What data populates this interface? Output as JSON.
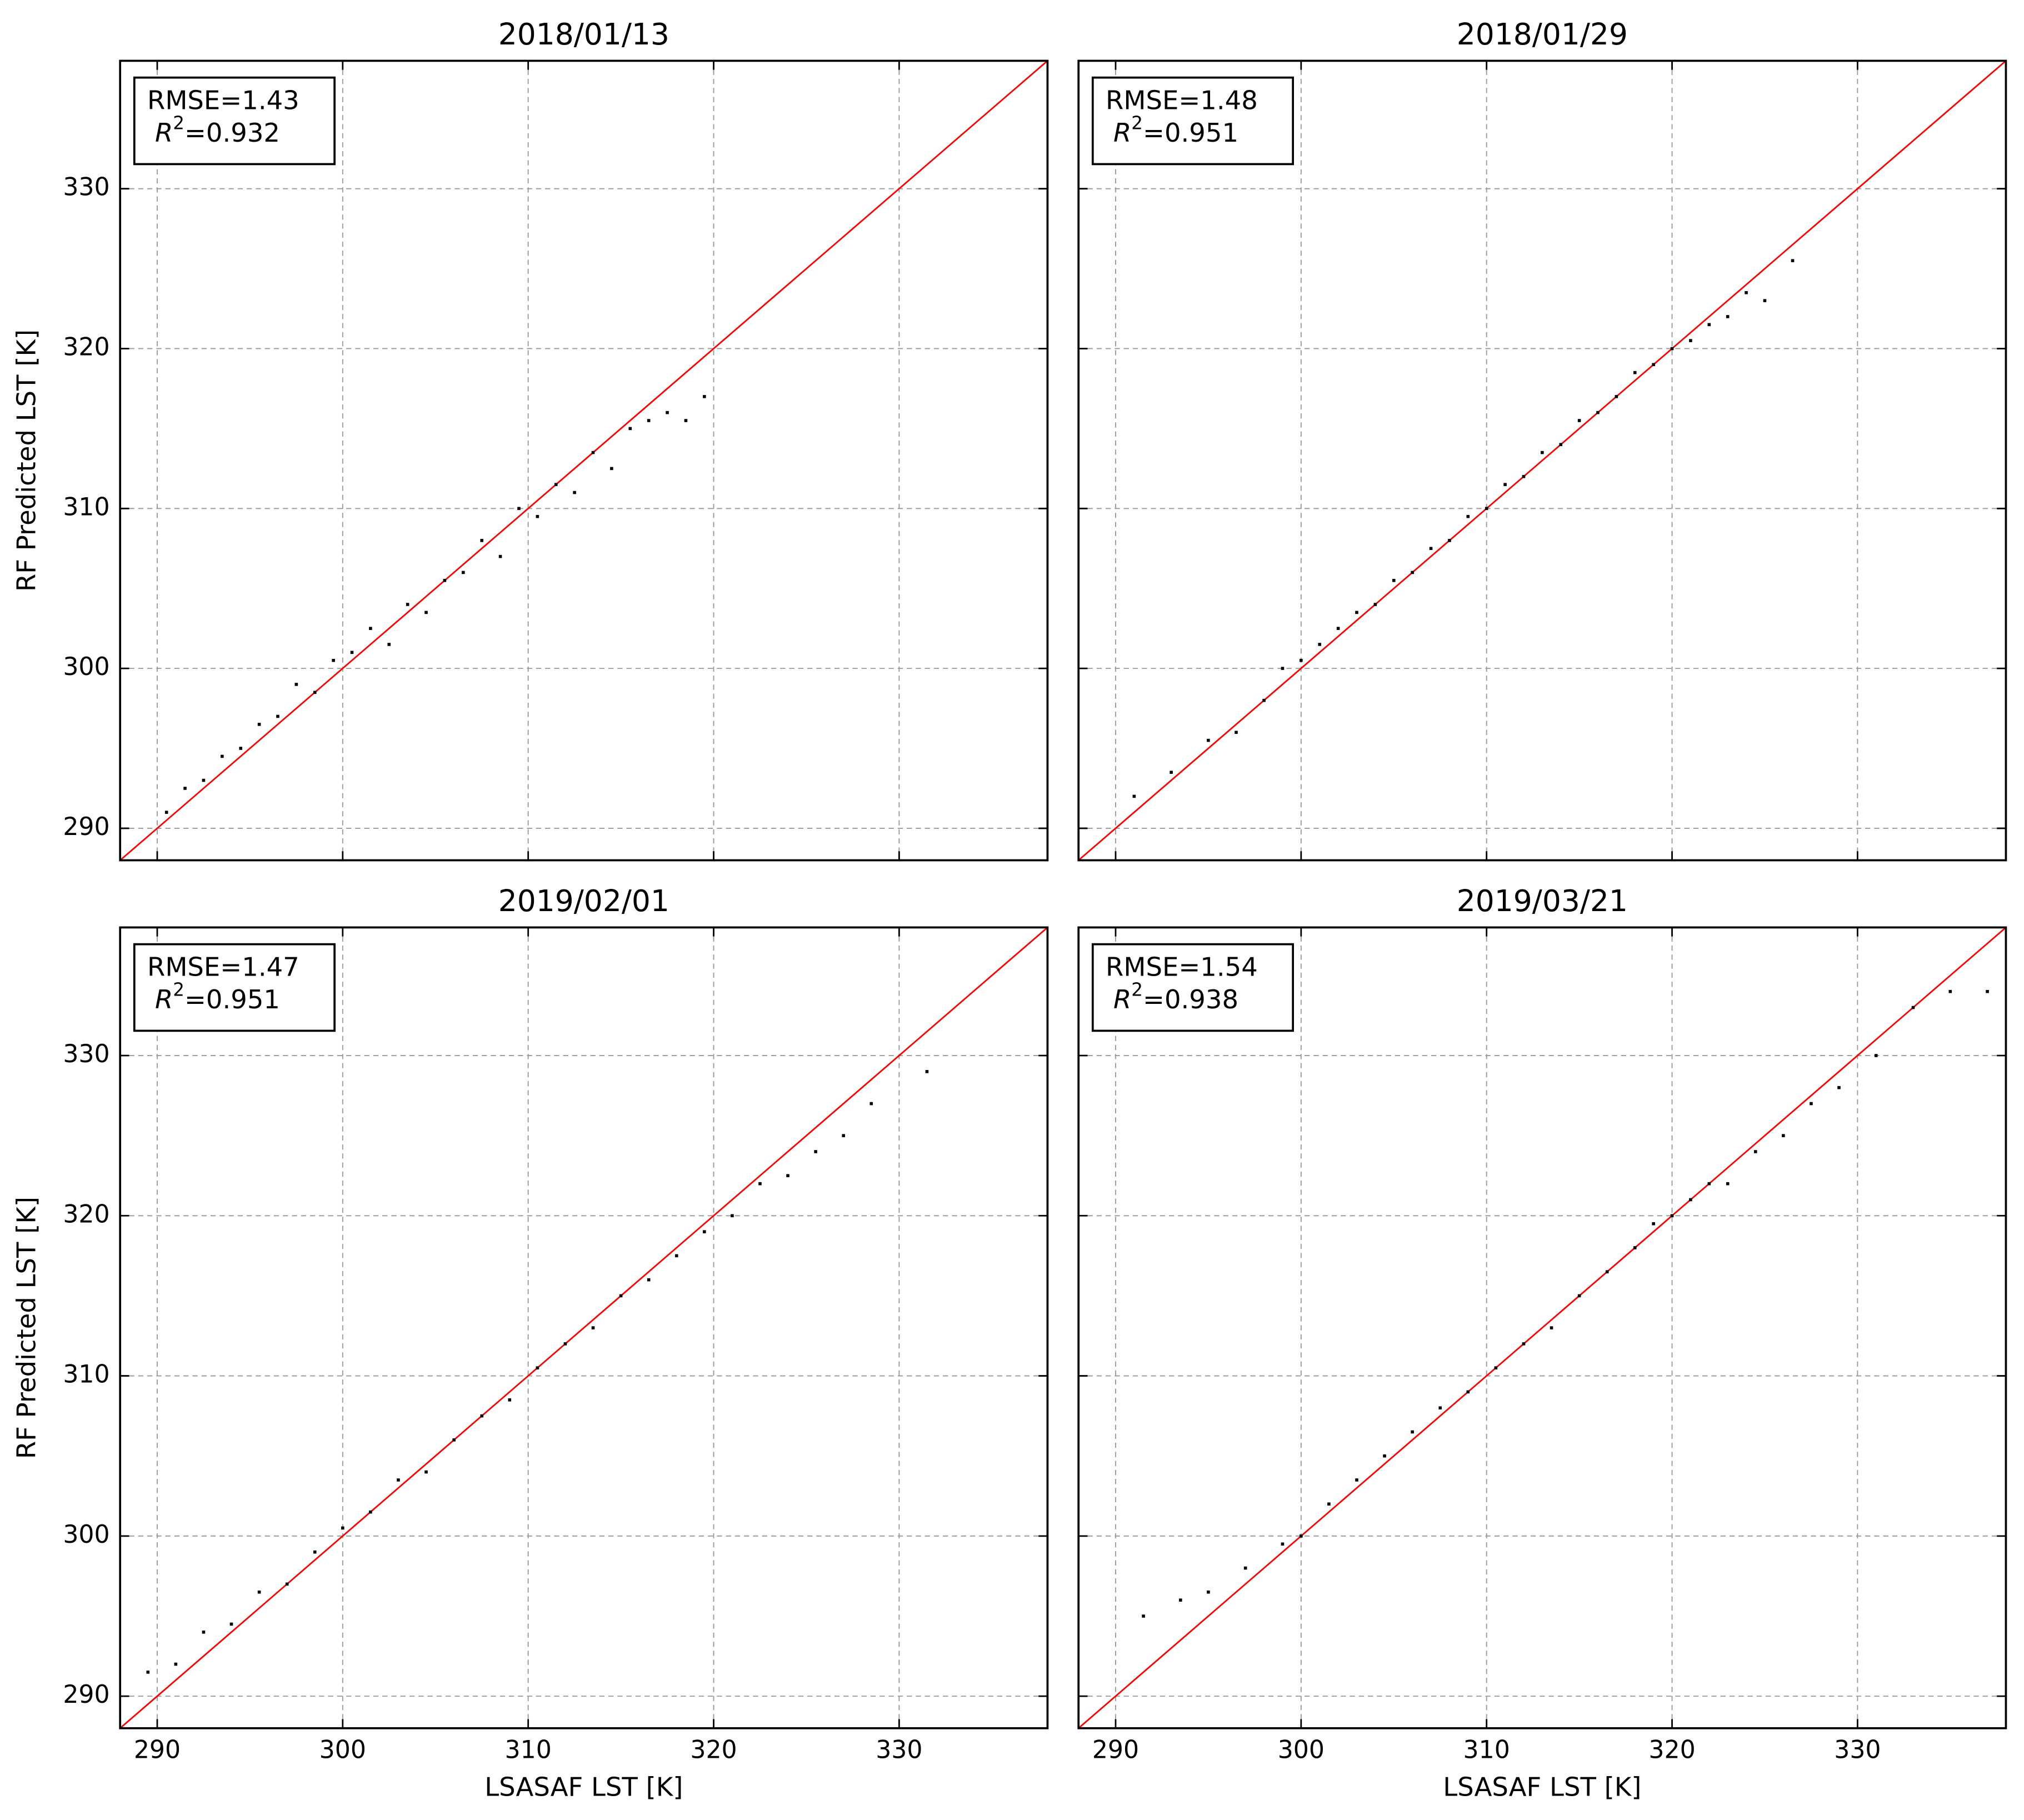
{
  "chart_data": [
    {
      "type": "scatter",
      "title": "2018/01/13",
      "ylabel": "RF Predicted LST [K]",
      "annotation": {
        "rmse": "RMSE=1.43",
        "r2_symbol": "R",
        "r2_exponent": "2",
        "r2_value": "=0.932"
      },
      "xlim": [
        288,
        338
      ],
      "ylim": [
        288,
        338
      ],
      "xticks": [
        290,
        300,
        310,
        320,
        330
      ],
      "yticks": [
        290,
        300,
        310,
        320,
        330
      ],
      "show_xtick_labels": false,
      "show_ytick_labels": true,
      "grid": true,
      "color": "#000000",
      "reference_line_color": "#ff0000",
      "x": [
        290.5,
        291.5,
        292.5,
        293.5,
        294.5,
        295.5,
        296.5,
        297.5,
        298.5,
        299.5,
        300.5,
        301.5,
        302.5,
        303.5,
        304.5,
        305.5,
        306.5,
        307.5,
        308.5,
        309.5,
        310.5,
        311.5,
        312.5,
        313.5,
        314.5,
        315.5,
        316.5,
        317.5,
        318.5,
        319.5
      ],
      "values": [
        291.0,
        292.5,
        293.0,
        294.5,
        295.0,
        296.5,
        297.0,
        299.0,
        298.5,
        300.5,
        301.0,
        302.5,
        301.5,
        304.0,
        303.5,
        305.5,
        306.0,
        308.0,
        307.0,
        310.0,
        309.5,
        311.5,
        311.0,
        313.5,
        312.5,
        315.0,
        315.5,
        316.0,
        315.5,
        317.0
      ]
    },
    {
      "type": "scatter",
      "title": "2018/01/29",
      "annotation": {
        "rmse": "RMSE=1.48",
        "r2_symbol": "R",
        "r2_exponent": "2",
        "r2_value": "=0.951"
      },
      "xlim": [
        288,
        338
      ],
      "ylim": [
        288,
        338
      ],
      "xticks": [
        290,
        300,
        310,
        320,
        330
      ],
      "yticks": [
        290,
        300,
        310,
        320,
        330
      ],
      "show_xtick_labels": false,
      "show_ytick_labels": false,
      "grid": true,
      "color": "#000000",
      "reference_line_color": "#ff0000",
      "x": [
        291,
        293,
        295,
        296.5,
        298,
        299,
        300,
        301,
        302,
        303,
        304,
        305,
        306,
        307,
        308,
        309,
        310,
        311,
        312,
        313,
        314,
        315,
        316,
        317,
        318,
        319,
        320,
        321,
        322,
        323,
        324,
        325,
        326.5
      ],
      "values": [
        292,
        293.5,
        295.5,
        296,
        298,
        300,
        300.5,
        301.5,
        302.5,
        303.5,
        304,
        305.5,
        306,
        307.5,
        308,
        309.5,
        310,
        311.5,
        312,
        313.5,
        314,
        315.5,
        316,
        317,
        318.5,
        319,
        320,
        320.5,
        321.5,
        322,
        323.5,
        323,
        325.5
      ]
    },
    {
      "type": "scatter",
      "title": "2019/02/01",
      "xlabel": "LSASAF LST [K]",
      "ylabel": "RF Predicted LST [K]",
      "annotation": {
        "rmse": "RMSE=1.47",
        "r2_symbol": "R",
        "r2_exponent": "2",
        "r2_value": "=0.951"
      },
      "xlim": [
        288,
        338
      ],
      "ylim": [
        288,
        338
      ],
      "xticks": [
        290,
        300,
        310,
        320,
        330
      ],
      "yticks": [
        290,
        300,
        310,
        320,
        330
      ],
      "show_xtick_labels": true,
      "show_ytick_labels": true,
      "grid": true,
      "color": "#000000",
      "reference_line_color": "#ff0000",
      "x": [
        289.5,
        291,
        292.5,
        294,
        295.5,
        297,
        298.5,
        300,
        301.5,
        303,
        304.5,
        306,
        307.5,
        309,
        310.5,
        312,
        313.5,
        315,
        316.5,
        318,
        319.5,
        321,
        322.5,
        324,
        325.5,
        327,
        328.5,
        331.5
      ],
      "values": [
        291.5,
        292,
        294,
        294.5,
        296.5,
        297,
        299,
        300.5,
        301.5,
        303.5,
        304,
        306,
        307.5,
        308.5,
        310.5,
        312,
        313,
        315,
        316,
        317.5,
        319,
        320,
        322,
        322.5,
        324,
        325,
        327,
        329
      ]
    },
    {
      "type": "scatter",
      "title": "2019/03/21",
      "xlabel": "LSASAF LST [K]",
      "annotation": {
        "rmse": "RMSE=1.54",
        "r2_symbol": "R",
        "r2_exponent": "2",
        "r2_value": "=0.938"
      },
      "xlim": [
        288,
        338
      ],
      "ylim": [
        288,
        338
      ],
      "xticks": [
        290,
        300,
        310,
        320,
        330
      ],
      "yticks": [
        290,
        300,
        310,
        320,
        330
      ],
      "show_xtick_labels": true,
      "show_ytick_labels": false,
      "grid": true,
      "color": "#000000",
      "reference_line_color": "#ff0000",
      "x": [
        291.5,
        293.5,
        295,
        297,
        299,
        300,
        301.5,
        303,
        304.5,
        306,
        307.5,
        309,
        310.5,
        312,
        313.5,
        315,
        316.5,
        318,
        319,
        320,
        321,
        322,
        323,
        324.5,
        326,
        327.5,
        329,
        331,
        333,
        335,
        337
      ],
      "values": [
        295,
        296,
        296.5,
        298,
        299.5,
        300,
        302,
        303.5,
        305,
        306.5,
        308,
        309,
        310.5,
        312,
        313,
        315,
        316.5,
        318,
        319.5,
        320,
        321,
        322,
        322,
        324,
        325,
        327,
        328,
        330,
        333,
        334,
        334
      ]
    }
  ]
}
